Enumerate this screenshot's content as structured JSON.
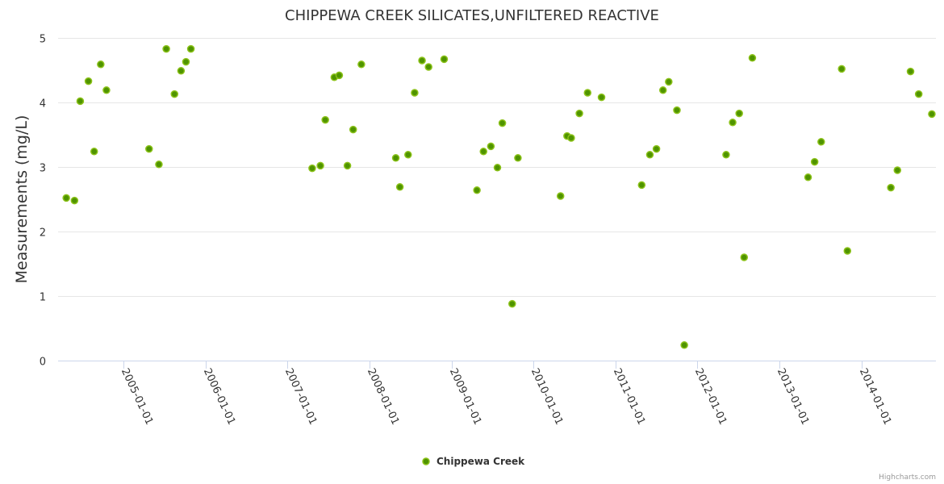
{
  "chart_data": {
    "type": "scatter",
    "title": "CHIPPEWA CREEK SILICATES,UNFILTERED REACTIVE",
    "xlabel": "",
    "ylabel": "Measurements (mg/L)",
    "xlim": [
      2004.2,
      2014.91
    ],
    "ylim": [
      0,
      5
    ],
    "grid": true,
    "legend_position": "bottom-center",
    "y_ticks": [
      0,
      1,
      2,
      3,
      4,
      5
    ],
    "x_ticks": [
      {
        "value": 2005,
        "label": "2005-01-01"
      },
      {
        "value": 2006,
        "label": "2006-01-01"
      },
      {
        "value": 2007,
        "label": "2007-01-01"
      },
      {
        "value": 2008,
        "label": "2008-01-01"
      },
      {
        "value": 2009,
        "label": "2009-01-01"
      },
      {
        "value": 2010,
        "label": "2010-01-01"
      },
      {
        "value": 2011,
        "label": "2011-01-01"
      },
      {
        "value": 2012,
        "label": "2012-01-01"
      },
      {
        "value": 2013,
        "label": "2013-01-01"
      },
      {
        "value": 2014,
        "label": "2014-01-01"
      }
    ],
    "series": [
      {
        "name": "Chippewa Creek",
        "color": "#5a9e00",
        "points": [
          [
            2004.3,
            2.52
          ],
          [
            2004.4,
            2.48
          ],
          [
            2004.47,
            4.02
          ],
          [
            2004.57,
            4.33
          ],
          [
            2004.64,
            3.24
          ],
          [
            2004.72,
            4.59
          ],
          [
            2004.79,
            4.19
          ],
          [
            2005.31,
            3.28
          ],
          [
            2005.43,
            3.04
          ],
          [
            2005.52,
            4.83
          ],
          [
            2005.62,
            4.13
          ],
          [
            2005.7,
            4.49
          ],
          [
            2005.76,
            4.63
          ],
          [
            2005.82,
            4.83
          ],
          [
            2007.3,
            2.98
          ],
          [
            2007.4,
            3.02
          ],
          [
            2007.46,
            3.73
          ],
          [
            2007.57,
            4.39
          ],
          [
            2007.63,
            4.42
          ],
          [
            2007.73,
            3.02
          ],
          [
            2007.8,
            3.58
          ],
          [
            2007.9,
            4.59
          ],
          [
            2008.32,
            3.14
          ],
          [
            2008.37,
            2.69
          ],
          [
            2008.47,
            3.19
          ],
          [
            2008.55,
            4.15
          ],
          [
            2008.64,
            4.65
          ],
          [
            2008.72,
            4.55
          ],
          [
            2008.91,
            4.67
          ],
          [
            2009.31,
            2.64
          ],
          [
            2009.39,
            3.24
          ],
          [
            2009.48,
            3.32
          ],
          [
            2009.56,
            2.99
          ],
          [
            2009.62,
            3.68
          ],
          [
            2009.74,
            0.88
          ],
          [
            2009.81,
            3.14
          ],
          [
            2010.33,
            2.55
          ],
          [
            2010.41,
            3.48
          ],
          [
            2010.46,
            3.45
          ],
          [
            2010.56,
            3.83
          ],
          [
            2010.66,
            4.15
          ],
          [
            2010.83,
            4.08
          ],
          [
            2011.32,
            2.72
          ],
          [
            2011.42,
            3.19
          ],
          [
            2011.5,
            3.28
          ],
          [
            2011.58,
            4.19
          ],
          [
            2011.65,
            4.32
          ],
          [
            2011.75,
            3.88
          ],
          [
            2011.84,
            0.24
          ],
          [
            2012.35,
            3.19
          ],
          [
            2012.43,
            3.69
          ],
          [
            2012.51,
            3.83
          ],
          [
            2012.57,
            1.6
          ],
          [
            2012.67,
            4.69
          ],
          [
            2013.35,
            2.84
          ],
          [
            2013.43,
            3.08
          ],
          [
            2013.51,
            3.39
          ],
          [
            2013.76,
            4.52
          ],
          [
            2013.83,
            1.7
          ],
          [
            2014.36,
            2.68
          ],
          [
            2014.44,
            2.95
          ],
          [
            2014.6,
            4.48
          ],
          [
            2014.7,
            4.13
          ],
          [
            2014.86,
            3.82
          ]
        ]
      }
    ]
  },
  "credit": "Highcharts.com"
}
